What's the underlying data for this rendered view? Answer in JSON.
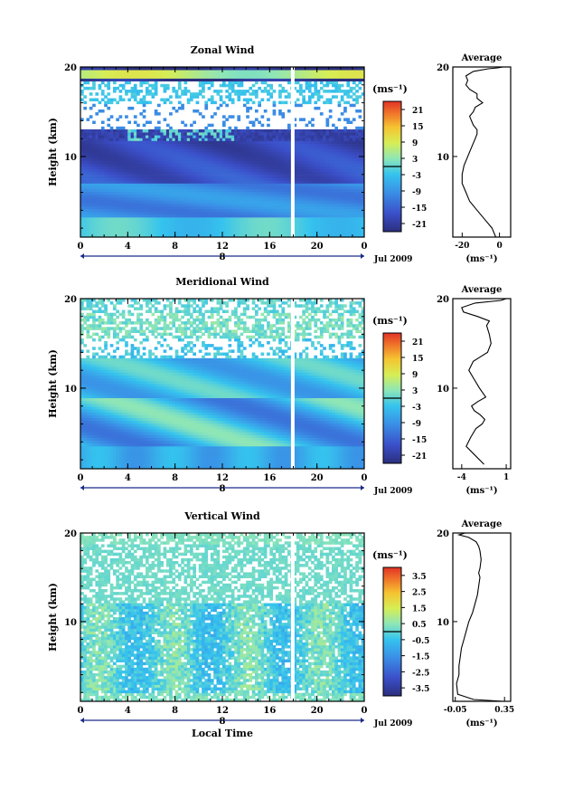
{
  "chart_data": [
    {
      "type": "heatmap",
      "title": "Zonal Wind",
      "ylabel": "Height (km)",
      "xlim": [
        0,
        24
      ],
      "ylim": [
        1,
        20
      ],
      "x_ticks": [
        "0",
        "4",
        "8",
        "12",
        "16",
        "20",
        "0"
      ],
      "y_ticks": [
        "10",
        "20"
      ],
      "date_label": "8",
      "month_label": "Jul 2009",
      "colorbar": {
        "unit": "(ms⁻¹)",
        "ticks": [
          "21",
          "15",
          "9",
          "3",
          "-3",
          "-9",
          "-15",
          "-21"
        ],
        "range": [
          -24,
          24
        ]
      },
      "profile": {
        "title": "Average",
        "xlabel": "(ms⁻¹)",
        "x_ticks": [
          "-20",
          "0"
        ],
        "y_ticks": [
          "10",
          "20"
        ],
        "xlim": [
          -25,
          6
        ],
        "x": [
          -2,
          -4,
          -8,
          -12,
          -16,
          -18,
          -20,
          -20,
          -19,
          -17,
          -15,
          -13,
          -12,
          -12,
          -14,
          -15,
          -16,
          -14,
          -13,
          -9,
          -12,
          -12,
          -16,
          -18,
          -17,
          -18,
          -14,
          -6,
          -1,
          2,
          4,
          1
        ],
        "y": [
          1,
          2,
          3,
          4,
          5,
          6,
          7,
          8,
          9,
          10,
          11,
          12,
          12.5,
          13,
          13.5,
          14,
          14.5,
          15,
          15.5,
          16,
          16.5,
          17,
          17.5,
          18,
          18.5,
          19,
          19.5,
          19.8,
          19.9,
          20,
          20,
          20
        ]
      }
    },
    {
      "type": "heatmap",
      "title": "Meridional Wind",
      "ylabel": "Height (km)",
      "xlim": [
        0,
        24
      ],
      "ylim": [
        1,
        20
      ],
      "x_ticks": [
        "0",
        "4",
        "8",
        "12",
        "16",
        "20",
        "0"
      ],
      "y_ticks": [
        "10",
        "20"
      ],
      "date_label": "8",
      "month_label": "Jul 2009",
      "colorbar": {
        "unit": "(ms⁻¹)",
        "ticks": [
          "21",
          "15",
          "9",
          "3",
          "-3",
          "-9",
          "-15",
          "-21"
        ],
        "range": [
          -24,
          24
        ]
      },
      "profile": {
        "title": "Average",
        "xlabel": "(ms⁻¹)",
        "x_ticks": [
          "-4",
          "1"
        ],
        "y_ticks": [
          "10",
          "20"
        ],
        "xlim": [
          -5,
          1.5
        ],
        "x": [
          -1.5,
          -2.5,
          -3.5,
          -3,
          -2.4,
          -1.7,
          -1.4,
          -1.9,
          -2.6,
          -2.9,
          -2.2,
          -1.3,
          -2.0,
          -2.6,
          -3.2,
          -2.7,
          -1.9,
          -1.1,
          -0.7,
          -0.9,
          -1.2,
          -0.9,
          -2.2,
          -3.8,
          -4.0,
          -2.5,
          0.4,
          1.0
        ],
        "y": [
          1.5,
          2.5,
          3.5,
          4.5,
          5.5,
          6.0,
          6.5,
          7.0,
          7.5,
          8.0,
          8.5,
          9.0,
          10.0,
          11.0,
          12.0,
          13.0,
          13.5,
          14.0,
          15.0,
          16.0,
          17.0,
          17.5,
          18.0,
          18.5,
          19.0,
          19.5,
          19.8,
          20.0
        ]
      }
    },
    {
      "type": "heatmap",
      "title": "Vertical Wind",
      "ylabel": "Height (km)",
      "xlabel": "Local Time",
      "xlim": [
        0,
        24
      ],
      "ylim": [
        1,
        20
      ],
      "x_ticks": [
        "0",
        "4",
        "8",
        "12",
        "16",
        "20",
        "0"
      ],
      "y_ticks": [
        "10",
        "20"
      ],
      "date_label": "8",
      "month_label": "Jul 2009",
      "colorbar": {
        "unit": "(ms⁻¹)",
        "ticks": [
          "3.5",
          "2.5",
          "1.5",
          "0.5",
          "-0.5",
          "-1.5",
          "-2.5",
          "-3.5"
        ],
        "range": [
          -4,
          4
        ]
      },
      "profile": {
        "title": "Average",
        "xlabel": "(ms⁻¹)",
        "x_ticks": [
          "-0.05",
          "0.35"
        ],
        "y_ticks": [
          "10",
          "20"
        ],
        "xlim": [
          -0.07,
          0.4
        ],
        "x": [
          0.34,
          0.1,
          -0.03,
          -0.04,
          -0.02,
          -0.02,
          -0.01,
          0.0,
          0.02,
          0.04,
          0.06,
          0.09,
          0.11,
          0.13,
          0.14,
          0.15,
          0.14,
          0.15,
          0.16,
          0.15,
          0.14,
          0.12,
          0.06,
          -0.02,
          0.03
        ],
        "y": [
          1.0,
          1.2,
          1.8,
          3.0,
          4.0,
          5.0,
          6.0,
          7.0,
          8.0,
          9.0,
          10.0,
          11.0,
          12.0,
          13.0,
          14.0,
          15.0,
          15.5,
          16.0,
          17.0,
          18.0,
          18.5,
          19.0,
          19.5,
          19.8,
          20.0
        ]
      }
    }
  ]
}
